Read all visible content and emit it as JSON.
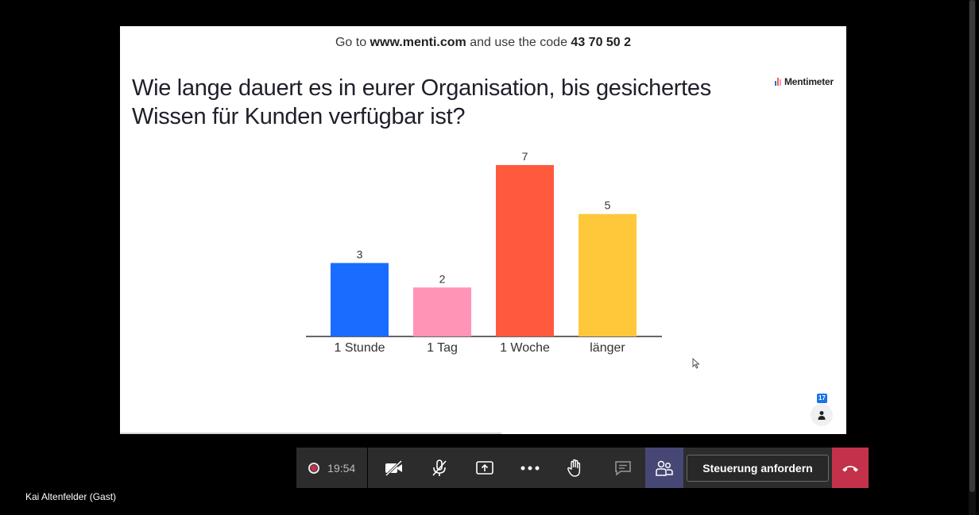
{
  "slide": {
    "instruction_prefix": "Go to",
    "instruction_url": "www.menti.com",
    "instruction_mid": "and use the code",
    "instruction_code": "43 70 50 2",
    "question_line1": "Wie lange dauert es in eurer Organisation, bis gesichertes",
    "question_line2": "Wissen für Kunden verfügbar ist?",
    "logo_text": "Mentimeter",
    "participant_count": "17"
  },
  "chart_data": {
    "type": "bar",
    "title": "",
    "categories": [
      "1 Stunde",
      "1 Tag",
      "1 Woche",
      "länger"
    ],
    "values": [
      3,
      2,
      7,
      5
    ],
    "colors": [
      "#196cff",
      "#ff94b7",
      "#ff5a3d",
      "#ffc83a"
    ],
    "data_labels": [
      "3",
      "2",
      "7",
      "5"
    ],
    "ylim": [
      0,
      7
    ],
    "grid": false,
    "legend": "none"
  },
  "toolbar": {
    "timer": "19:54",
    "control_label": "Steuerung anfordern",
    "icons": [
      "record-icon",
      "camera-off-icon",
      "mic-off-icon",
      "share-screen-icon",
      "more-icon",
      "raise-hand-icon",
      "chat-icon",
      "participants-icon",
      "hang-up-icon"
    ]
  },
  "participant": {
    "name": "Kai Altenfelder (Gast)"
  },
  "colors": {
    "toolbar_bg": "#2d2c2c",
    "roster_active": "#464775",
    "hang_up": "#c4314b"
  }
}
